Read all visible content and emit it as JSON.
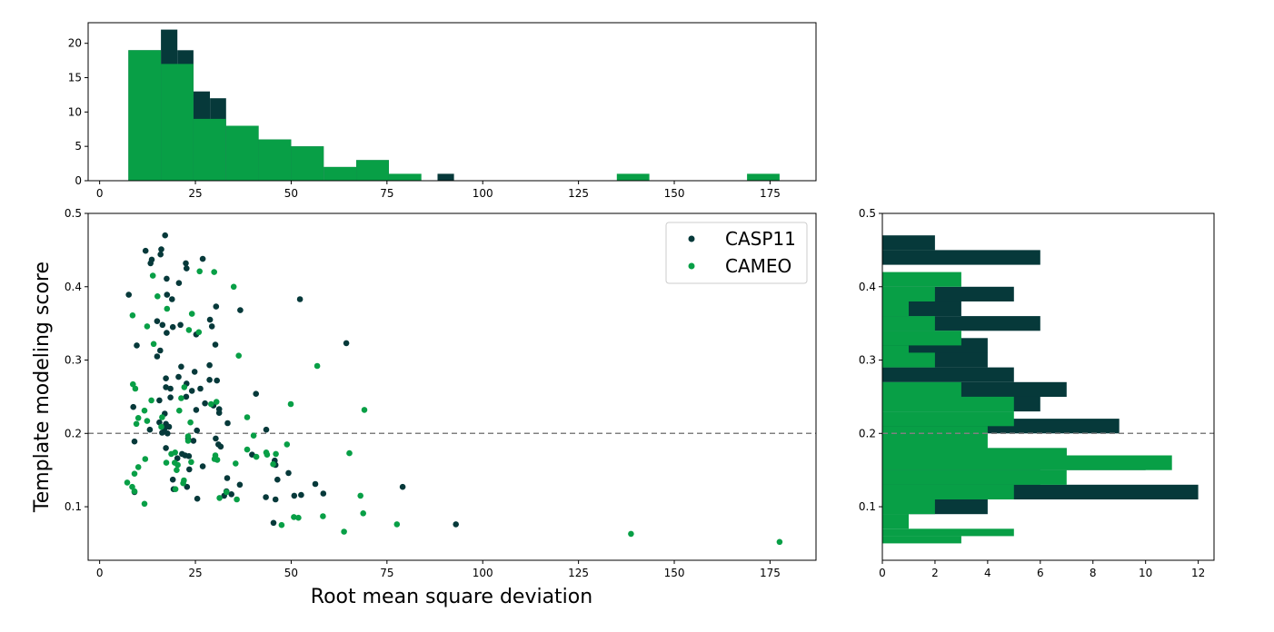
{
  "colors": {
    "casp11": "#06393a",
    "cameo": "#089f46",
    "threshold": "#808080"
  },
  "chart_data": [
    {
      "id": "scatter",
      "type": "scatter",
      "xlabel": "Root mean square deviation",
      "ylabel": "Template modeling score",
      "xlim": [
        -3,
        187
      ],
      "ylim": [
        0.027,
        0.5
      ],
      "xticks": [
        0,
        25,
        50,
        75,
        100,
        125,
        150,
        175
      ],
      "yticks": [
        0.1,
        0.2,
        0.3,
        0.4,
        0.5
      ],
      "threshold_y": 0.2,
      "legend_position": "top-right",
      "series": [
        {
          "name": "CASP11",
          "color": "#06393a",
          "points": [
            [
              17.1,
              0.47
            ],
            [
              12.0,
              0.449
            ],
            [
              16.1,
              0.451
            ],
            [
              13.6,
              0.437
            ],
            [
              13.3,
              0.432
            ],
            [
              15.9,
              0.444
            ],
            [
              22.5,
              0.432
            ],
            [
              22.7,
              0.425
            ],
            [
              26.9,
              0.438
            ],
            [
              7.6,
              0.389
            ],
            [
              17.5,
              0.411
            ],
            [
              20.7,
              0.405
            ],
            [
              17.6,
              0.389
            ],
            [
              18.9,
              0.383
            ],
            [
              52.3,
              0.383
            ],
            [
              30.4,
              0.373
            ],
            [
              36.7,
              0.368
            ],
            [
              28.8,
              0.355
            ],
            [
              15.0,
              0.353
            ],
            [
              16.4,
              0.348
            ],
            [
              21.1,
              0.348
            ],
            [
              19.1,
              0.345
            ],
            [
              29.3,
              0.346
            ],
            [
              17.5,
              0.337
            ],
            [
              25.2,
              0.335
            ],
            [
              9.7,
              0.32
            ],
            [
              30.2,
              0.321
            ],
            [
              64.4,
              0.323
            ],
            [
              15.8,
              0.313
            ],
            [
              15.0,
              0.305
            ],
            [
              28.7,
              0.293
            ],
            [
              21.3,
              0.291
            ],
            [
              24.8,
              0.284
            ],
            [
              20.6,
              0.277
            ],
            [
              17.3,
              0.275
            ],
            [
              28.7,
              0.273
            ],
            [
              30.6,
              0.272
            ],
            [
              22.7,
              0.268
            ],
            [
              17.3,
              0.263
            ],
            [
              18.5,
              0.261
            ],
            [
              24.1,
              0.258
            ],
            [
              26.3,
              0.261
            ],
            [
              40.8,
              0.254
            ],
            [
              22.6,
              0.25
            ],
            [
              18.5,
              0.249
            ],
            [
              15.6,
              0.245
            ],
            [
              29.7,
              0.238
            ],
            [
              8.8,
              0.236
            ],
            [
              27.5,
              0.241
            ],
            [
              31.2,
              0.233
            ],
            [
              31.2,
              0.228
            ],
            [
              25.2,
              0.232
            ],
            [
              17.0,
              0.227
            ],
            [
              33.4,
              0.214
            ],
            [
              17.3,
              0.213
            ],
            [
              15.6,
              0.215
            ],
            [
              16.9,
              0.206
            ],
            [
              18.1,
              0.209
            ],
            [
              13.1,
              0.205
            ],
            [
              16.3,
              0.201
            ],
            [
              17.7,
              0.2
            ],
            [
              43.5,
              0.205
            ],
            [
              25.4,
              0.204
            ],
            [
              9.1,
              0.189
            ],
            [
              23.1,
              0.193
            ],
            [
              24.5,
              0.19
            ],
            [
              30.3,
              0.193
            ],
            [
              17.3,
              0.18
            ],
            [
              31.0,
              0.185
            ],
            [
              31.6,
              0.182
            ],
            [
              21.5,
              0.172
            ],
            [
              22.3,
              0.17
            ],
            [
              23.3,
              0.169
            ],
            [
              20.3,
              0.166
            ],
            [
              39.8,
              0.171
            ],
            [
              45.7,
              0.163
            ],
            [
              45.9,
              0.157
            ],
            [
              26.9,
              0.155
            ],
            [
              23.4,
              0.151
            ],
            [
              19.1,
              0.137
            ],
            [
              33.3,
              0.139
            ],
            [
              49.3,
              0.146
            ],
            [
              46.4,
              0.137
            ],
            [
              19.3,
              0.124
            ],
            [
              22.8,
              0.127
            ],
            [
              36.6,
              0.13
            ],
            [
              56.3,
              0.131
            ],
            [
              79.1,
              0.127
            ],
            [
              33.1,
              0.121
            ],
            [
              34.4,
              0.117
            ],
            [
              32.5,
              0.115
            ],
            [
              9.1,
              0.12
            ],
            [
              50.8,
              0.115
            ],
            [
              52.6,
              0.116
            ],
            [
              58.4,
              0.118
            ],
            [
              25.5,
              0.111
            ],
            [
              43.4,
              0.113
            ],
            [
              45.9,
              0.11
            ],
            [
              45.4,
              0.078
            ],
            [
              93.0,
              0.076
            ]
          ]
        },
        {
          "name": "CAMEO",
          "color": "#089f46",
          "points": [
            [
              13.9,
              0.415
            ],
            [
              26.1,
              0.421
            ],
            [
              29.9,
              0.42
            ],
            [
              35.0,
              0.4
            ],
            [
              15.1,
              0.387
            ],
            [
              8.6,
              0.361
            ],
            [
              24.1,
              0.363
            ],
            [
              12.4,
              0.346
            ],
            [
              23.3,
              0.341
            ],
            [
              25.9,
              0.338
            ],
            [
              17.6,
              0.37
            ],
            [
              14.1,
              0.322
            ],
            [
              36.3,
              0.306
            ],
            [
              56.8,
              0.292
            ],
            [
              8.7,
              0.267
            ],
            [
              9.3,
              0.261
            ],
            [
              22.1,
              0.263
            ],
            [
              21.3,
              0.248
            ],
            [
              13.5,
              0.245
            ],
            [
              29.1,
              0.24
            ],
            [
              30.5,
              0.243
            ],
            [
              49.9,
              0.24
            ],
            [
              69.1,
              0.232
            ],
            [
              11.7,
              0.231
            ],
            [
              20.8,
              0.231
            ],
            [
              12.4,
              0.217
            ],
            [
              10.1,
              0.221
            ],
            [
              9.6,
              0.213
            ],
            [
              16.3,
              0.222
            ],
            [
              23.7,
              0.215
            ],
            [
              38.5,
              0.222
            ],
            [
              40.2,
              0.197
            ],
            [
              23.1,
              0.196
            ],
            [
              23.1,
              0.19
            ],
            [
              16.1,
              0.209
            ],
            [
              48.9,
              0.185
            ],
            [
              38.5,
              0.178
            ],
            [
              65.2,
              0.173
            ],
            [
              18.7,
              0.172
            ],
            [
              19.7,
              0.174
            ],
            [
              43.5,
              0.174
            ],
            [
              43.7,
              0.171
            ],
            [
              46.0,
              0.172
            ],
            [
              40.9,
              0.168
            ],
            [
              30.2,
              0.17
            ],
            [
              30.0,
              0.165
            ],
            [
              30.7,
              0.164
            ],
            [
              19.6,
              0.16
            ],
            [
              35.5,
              0.159
            ],
            [
              20.4,
              0.157
            ],
            [
              23.9,
              0.161
            ],
            [
              45.3,
              0.158
            ],
            [
              10.1,
              0.154
            ],
            [
              20.1,
              0.15
            ],
            [
              17.4,
              0.16
            ],
            [
              9.1,
              0.145
            ],
            [
              22.0,
              0.136
            ],
            [
              21.8,
              0.132
            ],
            [
              7.2,
              0.133
            ],
            [
              8.5,
              0.127
            ],
            [
              9.1,
              0.121
            ],
            [
              19.8,
              0.124
            ],
            [
              33.1,
              0.12
            ],
            [
              31.3,
              0.112
            ],
            [
              35.8,
              0.11
            ],
            [
              68.1,
              0.115
            ],
            [
              11.7,
              0.104
            ],
            [
              11.9,
              0.165
            ],
            [
              50.7,
              0.086
            ],
            [
              51.9,
              0.085
            ],
            [
              58.3,
              0.087
            ],
            [
              68.8,
              0.091
            ],
            [
              47.5,
              0.075
            ],
            [
              77.6,
              0.076
            ],
            [
              63.8,
              0.066
            ],
            [
              138.7,
              0.063
            ],
            [
              177.5,
              0.052
            ]
          ]
        }
      ]
    },
    {
      "id": "top-hist",
      "type": "bar",
      "orientation": "vertical",
      "xlim": [
        -3,
        187
      ],
      "ylim": [
        0,
        23
      ],
      "xticks": [
        0,
        25,
        50,
        75,
        100,
        125,
        150,
        175
      ],
      "yticks": [
        0,
        5,
        10,
        15,
        20
      ],
      "series": [
        {
          "name": "CASP11",
          "color": "#06393a",
          "bins": [
            [
              7.5,
              16.0,
              19
            ],
            [
              16.0,
              20.3,
              22
            ],
            [
              20.3,
              24.5,
              19
            ],
            [
              24.5,
              28.8,
              13
            ],
            [
              28.8,
              33.0,
              12
            ],
            [
              33.0,
              41.5,
              8
            ],
            [
              41.5,
              50.0,
              6
            ],
            [
              50.0,
              58.5,
              5
            ],
            [
              58.5,
              67.0,
              2
            ],
            [
              67.0,
              75.5,
              3
            ],
            [
              88.2,
              92.5,
              1
            ]
          ]
        },
        {
          "name": "CAMEO",
          "color": "#089f46",
          "bins": [
            [
              7.5,
              16.0,
              19
            ],
            [
              16.0,
              24.5,
              17
            ],
            [
              24.5,
              33.0,
              9
            ],
            [
              33.0,
              41.5,
              8
            ],
            [
              41.5,
              50.0,
              6
            ],
            [
              50.0,
              58.5,
              5
            ],
            [
              58.5,
              67.0,
              2
            ],
            [
              67.0,
              75.5,
              3
            ],
            [
              75.5,
              84.0,
              1
            ],
            [
              135.0,
              143.5,
              1
            ],
            [
              169.0,
              177.5,
              1
            ]
          ]
        }
      ]
    },
    {
      "id": "right-hist",
      "type": "bar",
      "orientation": "horizontal",
      "xlim": [
        0,
        12.6
      ],
      "ylim": [
        0.027,
        0.5
      ],
      "xticks": [
        0,
        2,
        4,
        6,
        8,
        10,
        12
      ],
      "yticks": [
        0.1,
        0.2,
        0.3,
        0.4,
        0.5
      ],
      "threshold_y": 0.2,
      "series": [
        {
          "name": "CASP11",
          "color": "#06393a",
          "bins": [
            [
              0.45,
              0.47,
              2
            ],
            [
              0.43,
              0.45,
              6
            ],
            [
              0.38,
              0.4,
              5
            ],
            [
              0.36,
              0.38,
              3
            ],
            [
              0.34,
              0.36,
              6
            ],
            [
              0.31,
              0.33,
              4
            ],
            [
              0.29,
              0.31,
              4
            ],
            [
              0.27,
              0.29,
              5
            ],
            [
              0.25,
              0.27,
              7
            ],
            [
              0.23,
              0.25,
              6
            ],
            [
              0.2,
              0.22,
              9
            ],
            [
              0.18,
              0.2,
              3
            ],
            [
              0.17,
              0.18,
              7
            ],
            [
              0.15,
              0.17,
              10
            ],
            [
              0.13,
              0.15,
              6
            ],
            [
              0.11,
              0.13,
              12
            ],
            [
              0.09,
              0.11,
              4
            ]
          ]
        },
        {
          "name": "CAMEO",
          "color": "#089f46",
          "bins": [
            [
              0.4,
              0.42,
              3
            ],
            [
              0.38,
              0.4,
              2
            ],
            [
              0.36,
              0.38,
              1
            ],
            [
              0.34,
              0.36,
              2
            ],
            [
              0.32,
              0.34,
              3
            ],
            [
              0.31,
              0.32,
              1
            ],
            [
              0.29,
              0.31,
              2
            ],
            [
              0.27,
              0.29,
              0
            ],
            [
              0.25,
              0.27,
              3
            ],
            [
              0.23,
              0.25,
              5
            ],
            [
              0.21,
              0.23,
              5
            ],
            [
              0.2,
              0.21,
              4
            ],
            [
              0.18,
              0.2,
              4
            ],
            [
              0.17,
              0.18,
              7
            ],
            [
              0.15,
              0.17,
              11
            ],
            [
              0.13,
              0.15,
              7
            ],
            [
              0.11,
              0.13,
              5
            ],
            [
              0.09,
              0.11,
              2
            ],
            [
              0.07,
              0.09,
              1
            ],
            [
              0.06,
              0.07,
              5
            ],
            [
              0.05,
              0.06,
              3
            ]
          ]
        }
      ]
    }
  ]
}
